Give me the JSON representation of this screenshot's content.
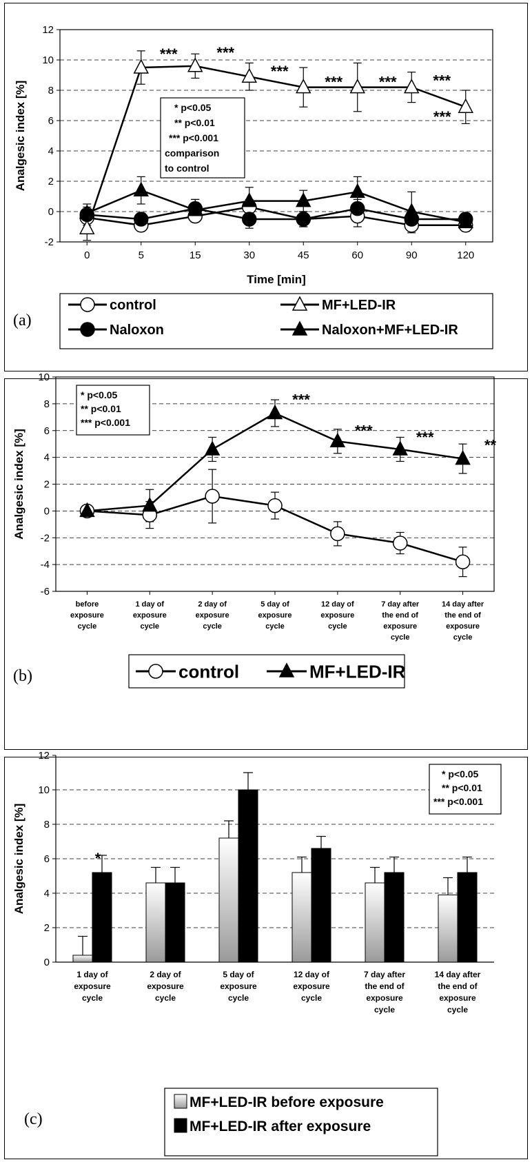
{
  "chart_data": [
    {
      "panel": "(a)",
      "type": "line",
      "xlabel": "Time [min]",
      "ylabel": "Analgesic index [%]",
      "categories": [
        "0",
        "5",
        "15",
        "30",
        "45",
        "60",
        "90",
        "120"
      ],
      "ylim": [
        -2,
        12
      ],
      "yticks": [
        "-2",
        "0",
        "2",
        "4",
        "6",
        "8",
        "10",
        "12"
      ],
      "grid": true,
      "series": [
        {
          "name": "control",
          "marker": "open-circle",
          "values": [
            -0.4,
            -0.9,
            -0.3,
            0.3,
            -0.5,
            -0.3,
            -0.9,
            -0.9
          ],
          "errors": [
            0.5,
            0.4,
            0.4,
            0.5,
            0.5,
            0.7,
            0.5,
            0.4
          ]
        },
        {
          "name": "MF+LED-IR",
          "marker": "open-triangle",
          "values": [
            -1.1,
            9.5,
            9.6,
            8.9,
            8.2,
            8.2,
            8.2,
            6.9
          ],
          "errors": [
            0.8,
            1.1,
            0.8,
            0.9,
            1.3,
            1.6,
            1.0,
            1.1
          ]
        },
        {
          "name": "Naloxon",
          "marker": "filled-circle",
          "values": [
            -0.2,
            -0.5,
            0.2,
            -0.5,
            -0.5,
            0.2,
            -0.5,
            -0.5
          ],
          "errors": [
            0.5,
            0.4,
            0.6,
            0.6,
            0.5,
            0.6,
            0.5,
            0.4
          ]
        },
        {
          "name": "Naloxon+MF+LED-IR",
          "marker": "filled-triangle",
          "values": [
            -0.1,
            1.4,
            0.1,
            0.7,
            0.7,
            1.3,
            0.0,
            -0.7
          ],
          "errors": [
            0.6,
            0.9,
            0.7,
            0.9,
            0.7,
            1.0,
            1.3,
            0.4
          ]
        }
      ],
      "annotations": [
        "***",
        "***",
        "***",
        "***",
        "***",
        "***",
        "***"
      ],
      "significance_box": [
        "*  p<0.05",
        "**  p<0.01",
        "*** p<0.001",
        "comparison",
        "to control"
      ],
      "legend": {
        "placement": "bottom",
        "entries": [
          "control",
          "MF+LED-IR",
          "Naloxon",
          "Naloxon+MF+LED-IR"
        ]
      }
    },
    {
      "panel": "(b)",
      "type": "line",
      "xlabel": "",
      "ylabel": "Analgesic index [%]",
      "categories": [
        [
          "before",
          "exposure",
          "cycle"
        ],
        [
          "1 day of",
          "exposure",
          "cycle"
        ],
        [
          "2 day of",
          "exposure",
          "cycle"
        ],
        [
          "5 day of",
          "exposure",
          "cycle"
        ],
        [
          "12 day of",
          "exposure",
          "cycle"
        ],
        [
          "7 day after",
          "the end of",
          "exposure",
          "cycle"
        ],
        [
          "14 day after",
          "the end of",
          "exposure",
          "cycle"
        ]
      ],
      "ylim": [
        -6,
        10
      ],
      "yticks": [
        "-6",
        "-4",
        "-2",
        "0",
        "2",
        "4",
        "6",
        "8",
        "10"
      ],
      "grid": true,
      "series": [
        {
          "name": "control",
          "marker": "open-circle",
          "values": [
            0.0,
            -0.3,
            1.1,
            0.4,
            -1.7,
            -2.4,
            -3.8
          ],
          "errors": [
            0.2,
            1.0,
            2.0,
            1.0,
            0.9,
            0.8,
            1.1
          ]
        },
        {
          "name": "MF+LED-IR",
          "marker": "filled-triangle",
          "values": [
            0.0,
            0.4,
            4.6,
            7.3,
            5.2,
            4.6,
            3.9
          ],
          "errors": [
            0.2,
            1.2,
            0.9,
            1.0,
            0.9,
            0.9,
            1.1
          ]
        }
      ],
      "annotations": [
        "***",
        "***",
        "***",
        "**"
      ],
      "significance_box": [
        "*   p<0.05",
        "**  p<0.01",
        "*** p<0.001"
      ],
      "legend": {
        "placement": "bottom",
        "entries": [
          "control",
          "MF+LED-IR"
        ]
      }
    },
    {
      "panel": "(c)",
      "type": "bar",
      "xlabel": "",
      "ylabel": "Analgesic  index [%]",
      "categories": [
        [
          "1 day of",
          "exposure",
          "cycle"
        ],
        [
          "2 day of",
          "exposure",
          "cycle"
        ],
        [
          "5 day of",
          "exposure",
          "cycle"
        ],
        [
          "12 day of",
          "exposure",
          "cycle"
        ],
        [
          "7 day after",
          "the end of",
          "exposure",
          "cycle"
        ],
        [
          "14 day after",
          "the end of",
          "exposure",
          "cycle"
        ]
      ],
      "ylim": [
        0,
        12
      ],
      "yticks": [
        "0",
        "2",
        "4",
        "6",
        "8",
        "10",
        "12"
      ],
      "grid": true,
      "series": [
        {
          "name": "MF+LED-IR before exposure",
          "fill": "light-gradient",
          "values": [
            0.4,
            4.6,
            7.2,
            5.2,
            4.6,
            3.9
          ],
          "errors": [
            1.1,
            0.9,
            1.0,
            0.9,
            0.9,
            1.0
          ]
        },
        {
          "name": "MF+LED-IR after exposure",
          "fill": "black",
          "values": [
            5.2,
            4.6,
            10.0,
            6.6,
            5.2,
            5.2
          ],
          "errors": [
            1.0,
            0.9,
            1.0,
            0.7,
            0.9,
            0.9
          ]
        }
      ],
      "annotations": [
        "*"
      ],
      "significance_box": [
        "*  p<0.05",
        "**  p<0.01",
        "*** p<0.001"
      ],
      "legend": {
        "placement": "bottom",
        "entries": [
          "MF+LED-IR before exposure",
          "MF+LED-IR after exposure"
        ]
      }
    }
  ]
}
